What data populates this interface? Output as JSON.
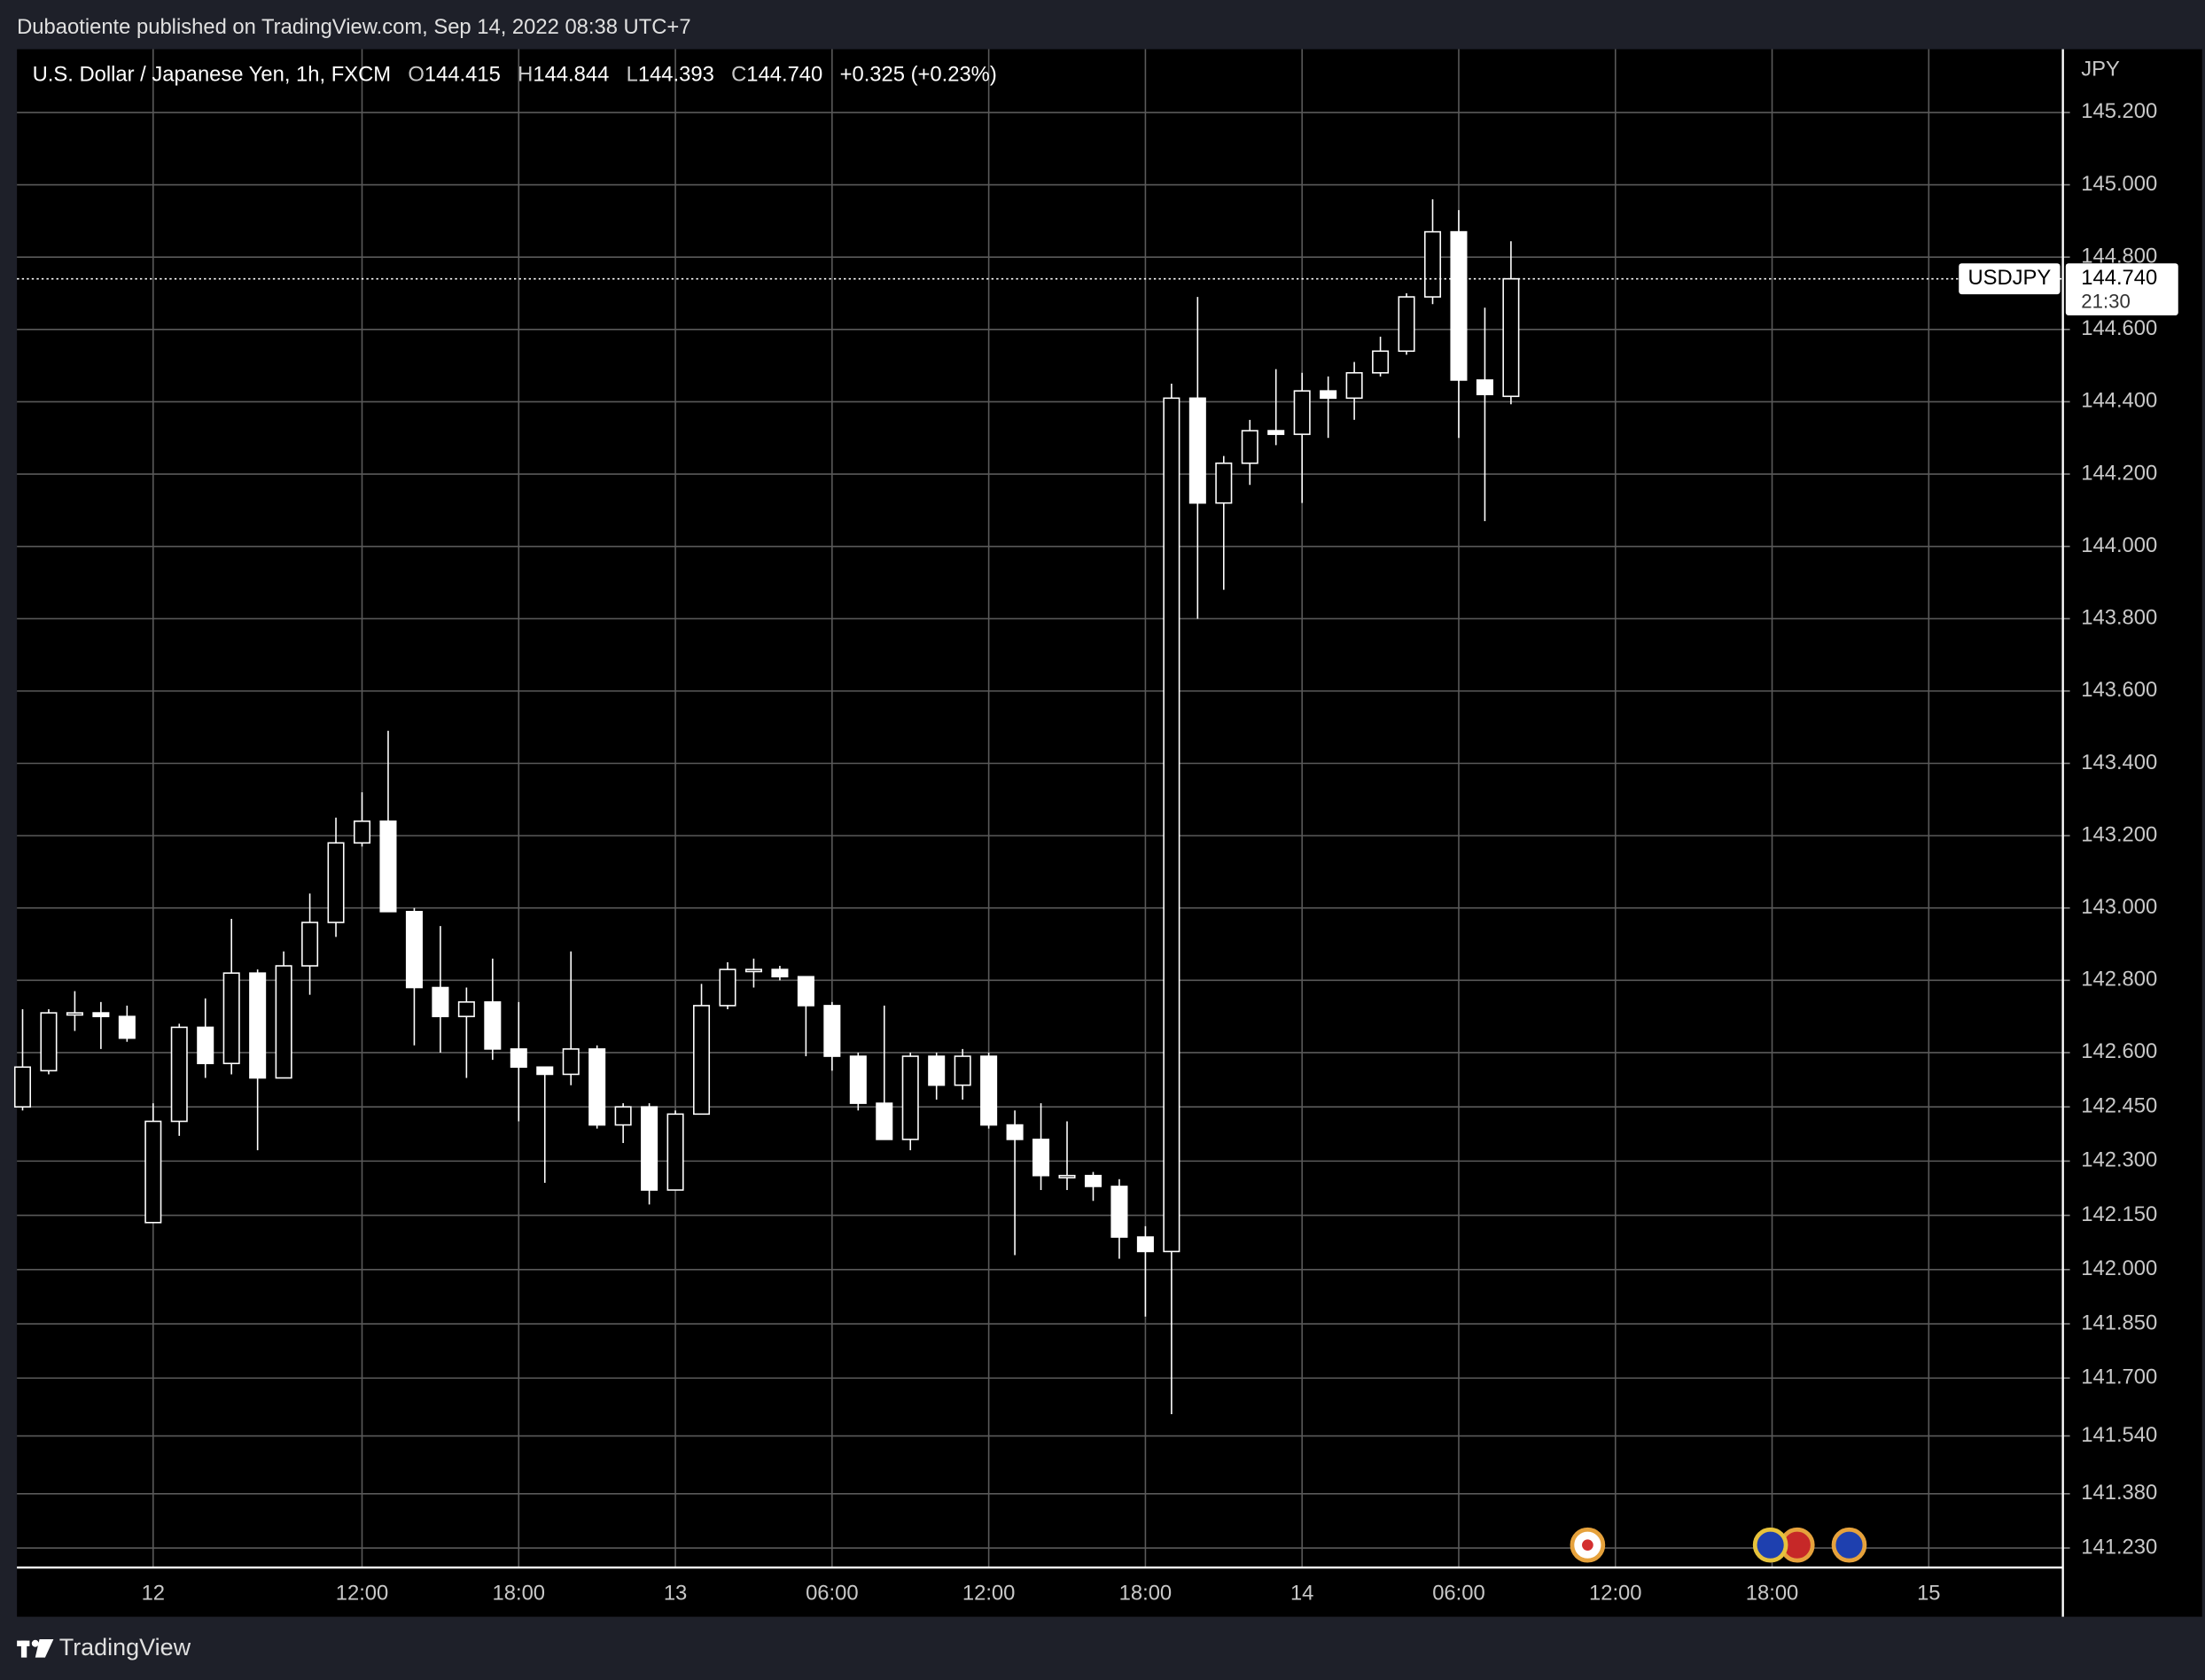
{
  "header": {
    "publisher": "Dubaotiente published on TradingView.com, Sep 14, 2022 08:38 UTC+7",
    "brand": "TradingView"
  },
  "chart_data": {
    "type": "candlestick",
    "title": "U.S. Dollar / Japanese Yen, 1h, FXCM",
    "header_items": [
      {
        "key": "O",
        "value": "144.415"
      },
      {
        "key": "H",
        "value": "144.844"
      },
      {
        "key": "L",
        "value": "144.393"
      },
      {
        "key": "C",
        "value": "144.740"
      }
    ],
    "change": "+0.325 (+0.23%)",
    "y_axis_label": "JPY",
    "categories": [
      null,
      null,
      null,
      null,
      null,
      "12",
      null,
      null,
      null,
      null,
      null,
      null,
      null,
      "12:00",
      null,
      null,
      null,
      null,
      null,
      "18:00",
      null,
      null,
      null,
      null,
      null,
      "13",
      null,
      null,
      null,
      null,
      null,
      "06:00",
      null,
      null,
      null,
      null,
      null,
      "12:00",
      null,
      null,
      null,
      null,
      null,
      "18:00",
      null,
      null,
      null,
      null,
      null,
      "14",
      null,
      null,
      null,
      null,
      null,
      "06:00",
      null,
      null,
      null,
      null,
      null,
      "12:00",
      null,
      null,
      null,
      null,
      null,
      "18:00",
      null,
      null,
      null,
      null,
      null,
      "15",
      null,
      null,
      null,
      null,
      null
    ],
    "open": [
      142.45,
      142.55,
      142.71,
      142.71,
      142.7,
      142.13,
      142.41,
      142.67,
      142.57,
      142.82,
      142.53,
      142.84,
      142.96,
      143.18,
      143.24,
      142.99,
      142.78,
      142.7,
      142.74,
      142.61,
      142.56,
      142.54,
      142.61,
      142.4,
      142.45,
      142.22,
      142.43,
      142.73,
      142.83,
      142.83,
      142.81,
      142.73,
      142.59,
      142.46,
      142.36,
      142.59,
      142.51,
      142.59,
      142.4,
      142.36,
      142.26,
      142.26,
      142.23,
      142.09,
      142.05,
      144.41,
      144.12,
      144.23,
      144.32,
      144.31,
      144.43,
      144.41,
      144.48,
      144.54,
      144.69,
      144.87,
      144.46,
      144.415,
      null,
      null,
      null,
      null,
      null,
      null,
      null,
      null,
      null,
      null,
      null,
      null,
      null,
      null,
      null,
      null,
      null,
      null,
      null,
      null,
      null
    ],
    "high": [
      142.72,
      142.72,
      142.77,
      142.74,
      142.73,
      142.46,
      142.68,
      142.75,
      142.97,
      142.83,
      142.88,
      143.04,
      143.25,
      143.32,
      143.49,
      143.0,
      142.95,
      142.78,
      142.86,
      142.74,
      142.56,
      142.88,
      142.62,
      142.46,
      142.46,
      142.44,
      142.79,
      142.85,
      142.86,
      142.84,
      142.81,
      142.74,
      142.6,
      142.73,
      142.6,
      142.6,
      142.61,
      142.6,
      142.44,
      142.46,
      142.41,
      142.27,
      142.25,
      142.12,
      144.45,
      144.69,
      144.25,
      144.35,
      144.49,
      144.48,
      144.47,
      144.51,
      144.58,
      144.7,
      144.96,
      144.93,
      144.66,
      144.844,
      null,
      null,
      null,
      null,
      null,
      null,
      null,
      null,
      null,
      null,
      null,
      null,
      null,
      null,
      null,
      null,
      null,
      null,
      null,
      null,
      null
    ],
    "low": [
      142.44,
      142.54,
      142.66,
      142.61,
      142.63,
      142.13,
      142.37,
      142.53,
      142.54,
      142.33,
      142.53,
      142.76,
      142.92,
      143.17,
      142.99,
      142.62,
      142.6,
      142.53,
      142.58,
      142.41,
      142.24,
      142.51,
      142.39,
      142.35,
      142.18,
      142.22,
      142.43,
      142.72,
      142.78,
      142.8,
      142.59,
      142.55,
      142.44,
      142.36,
      142.33,
      142.47,
      142.47,
      142.39,
      142.04,
      142.22,
      142.22,
      142.19,
      142.03,
      141.87,
      141.6,
      143.8,
      143.88,
      144.17,
      144.28,
      144.12,
      144.3,
      144.35,
      144.47,
      144.53,
      144.67,
      144.3,
      144.07,
      144.393,
      null,
      null,
      null,
      null,
      null,
      null,
      null,
      null,
      null,
      null,
      null,
      null,
      null,
      null,
      null,
      null,
      null,
      null,
      null,
      null,
      null
    ],
    "close": [
      142.56,
      142.71,
      142.71,
      142.7,
      142.64,
      142.41,
      142.67,
      142.57,
      142.82,
      142.53,
      142.84,
      142.96,
      143.18,
      143.24,
      142.99,
      142.78,
      142.7,
      142.74,
      142.61,
      142.56,
      142.54,
      142.61,
      142.4,
      142.45,
      142.22,
      142.43,
      142.73,
      142.83,
      142.83,
      142.81,
      142.73,
      142.59,
      142.46,
      142.36,
      142.59,
      142.51,
      142.59,
      142.4,
      142.36,
      142.26,
      142.26,
      142.23,
      142.09,
      142.05,
      144.41,
      144.12,
      144.23,
      144.32,
      144.31,
      144.43,
      144.41,
      144.48,
      144.54,
      144.69,
      144.87,
      144.46,
      144.42,
      144.74,
      null,
      null,
      null,
      null,
      null,
      null,
      null,
      null,
      null,
      null,
      null,
      null,
      null,
      null,
      null,
      null,
      null,
      null,
      null,
      null,
      null
    ],
    "up_color": "#000000",
    "down_color": "#ffffff",
    "wick_color": "#ffffff",
    "grid": true,
    "ylim": [
      141.176,
      145.375
    ],
    "yticks": [
      {
        "value": 145.2,
        "label": "145.200"
      },
      {
        "value": 145.0,
        "label": "145.000"
      },
      {
        "value": 144.8,
        "label": "144.800"
      },
      {
        "value": 144.6,
        "label": "144.600"
      },
      {
        "value": 144.4,
        "label": "144.400"
      },
      {
        "value": 144.2,
        "label": "144.200"
      },
      {
        "value": 144.0,
        "label": "144.000"
      },
      {
        "value": 143.8,
        "label": "143.800"
      },
      {
        "value": 143.6,
        "label": "143.600"
      },
      {
        "value": 143.4,
        "label": "143.400"
      },
      {
        "value": 143.2,
        "label": "143.200"
      },
      {
        "value": 143.0,
        "label": "143.000"
      },
      {
        "value": 142.8,
        "label": "142.800"
      },
      {
        "value": 142.6,
        "label": "142.600"
      },
      {
        "value": 142.45,
        "label": "142.450"
      },
      {
        "value": 142.3,
        "label": "142.300"
      },
      {
        "value": 142.15,
        "label": "142.150"
      },
      {
        "value": 142.0,
        "label": "142.000"
      },
      {
        "value": 141.85,
        "label": "141.850"
      },
      {
        "value": 141.7,
        "label": "141.700"
      },
      {
        "value": 141.54,
        "label": "141.540"
      },
      {
        "value": 141.38,
        "label": "141.380"
      },
      {
        "value": 141.23,
        "label": "141.230"
      }
    ],
    "price_line": {
      "name": "USDJPY",
      "value": 144.74,
      "label": "144.740",
      "countdown": "21:30"
    }
  }
}
